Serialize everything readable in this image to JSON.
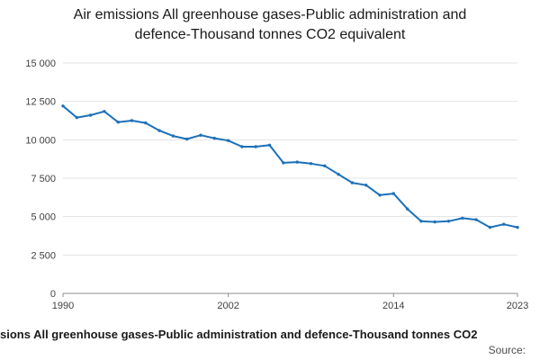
{
  "title": "Air emissions All greenhouse gases-Public administration and defence-Thousand tonnes CO2 equivalent",
  "footer": {
    "caption": "sions All greenhouse gases-Public administration and defence-Thousand tonnes CO2",
    "source_label": "Source:"
  },
  "colors": {
    "line": "#1d70b8",
    "grid": "#e3e3e3",
    "axis": "#8c8c8c",
    "tick_text": "#414042",
    "title_text": "#1a1a1a"
  },
  "chart_data": {
    "type": "line",
    "title": "Air emissions All greenhouse gases-Public administration and defence-Thousand tonnes CO2 equivalent",
    "xlabel": "",
    "ylabel": "",
    "x": [
      1990,
      1991,
      1992,
      1993,
      1994,
      1995,
      1996,
      1997,
      1998,
      1999,
      2000,
      2001,
      2002,
      2003,
      2004,
      2005,
      2006,
      2007,
      2008,
      2009,
      2010,
      2011,
      2012,
      2013,
      2014,
      2015,
      2016,
      2017,
      2018,
      2019,
      2020,
      2021,
      2022,
      2023
    ],
    "values": [
      12200,
      11450,
      11600,
      11850,
      11150,
      11250,
      11100,
      10600,
      10250,
      10050,
      10300,
      10100,
      9950,
      9550,
      9550,
      9650,
      8500,
      8550,
      8450,
      8300,
      7750,
      7200,
      7050,
      6400,
      6500,
      5500,
      4700,
      4650,
      4700,
      4900,
      4800,
      4300,
      4500,
      4300
    ],
    "ylim": [
      0,
      15000
    ],
    "yticks": {
      "values": [
        0,
        2500,
        5000,
        7500,
        10000,
        12500,
        15000
      ],
      "labels": [
        "0",
        "2 500",
        "5 000",
        "7 500",
        "10 000",
        "12 500",
        "15 000"
      ]
    },
    "xticks": [
      1990,
      2002,
      2014,
      2023
    ],
    "grid": "horizontal",
    "legend": "none"
  }
}
